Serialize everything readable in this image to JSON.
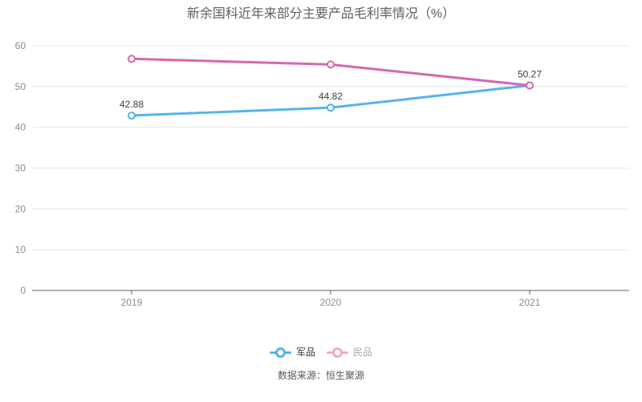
{
  "title": "新余国科近年来部分主要产品毛利率情况（%）",
  "source": "数据来源：恒生聚源",
  "colors": {
    "background": "#ffffff",
    "grid_line": "#e2e8ef",
    "axis_line": "#5c5f66",
    "tick_label": "#8b8b8b",
    "data_label": "#3d3d3d",
    "title_text": "#5e5e5e"
  },
  "legend": [
    {
      "label": "军品",
      "marker_color": "#55b3ef",
      "text_color": "#333333",
      "active": true
    },
    {
      "label": "民品",
      "marker_color": "#f2a9ce",
      "text_color": "#a8a8a8",
      "active": false
    }
  ],
  "chart_data": {
    "type": "line",
    "title": "新余国科近年来部分主要产品毛利率情况（%）",
    "categories": [
      "2019",
      "2020",
      "2021"
    ],
    "series": [
      {
        "name": "军品",
        "color": "#55b3ef",
        "values": [
          42.88,
          44.82,
          50.27
        ],
        "labels": [
          "42.88",
          "44.82",
          "50.27"
        ]
      },
      {
        "name": "民品",
        "color": "#d766ae",
        "values": [
          56.8,
          55.4,
          50.27
        ],
        "labels": [
          "",
          "",
          ""
        ]
      }
    ],
    "xlabel": "",
    "ylabel": "",
    "ylim": [
      0,
      60
    ],
    "yticks": [
      0,
      10,
      20,
      30,
      40,
      50,
      60
    ],
    "grid": true,
    "legend_position": "bottom"
  }
}
